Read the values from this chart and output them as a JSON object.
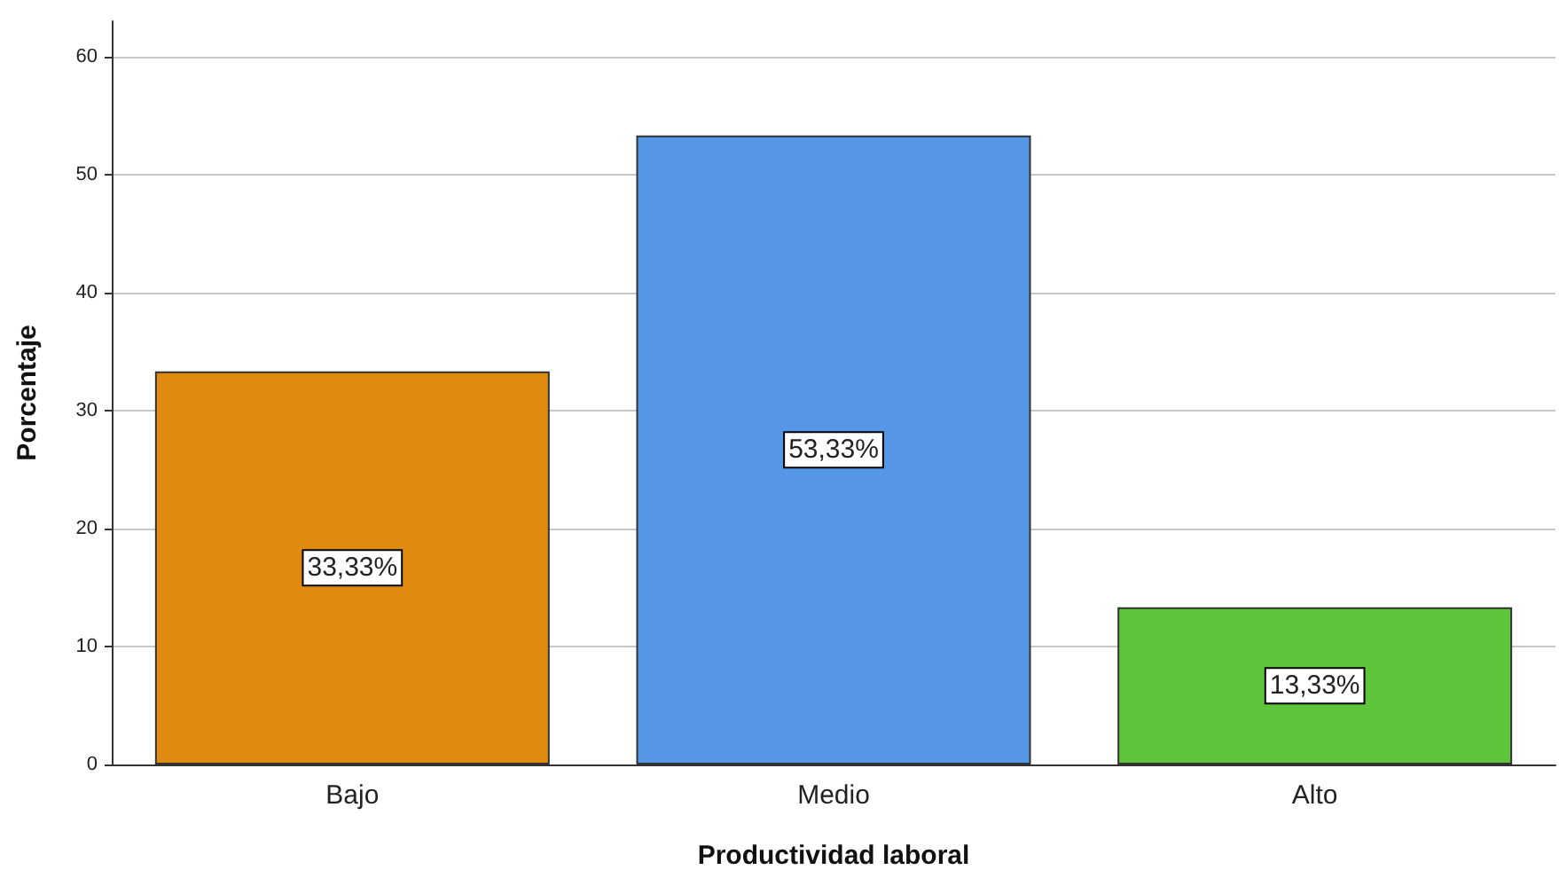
{
  "chart_data": {
    "type": "bar",
    "xlabel": "Productividad laboral",
    "ylabel": "Porcentaje",
    "categories": [
      "Bajo",
      "Medio",
      "Alto"
    ],
    "values": [
      33.33,
      53.33,
      13.33
    ],
    "colors": [
      "#e08a10",
      "#5596e6",
      "#5ec43a"
    ],
    "value_labels": [
      "33,33%",
      "53,33%",
      "13,33%"
    ],
    "ylim": [
      0,
      63
    ],
    "yticks": [
      0,
      10,
      20,
      30,
      40,
      50,
      60
    ],
    "grid": "y"
  }
}
